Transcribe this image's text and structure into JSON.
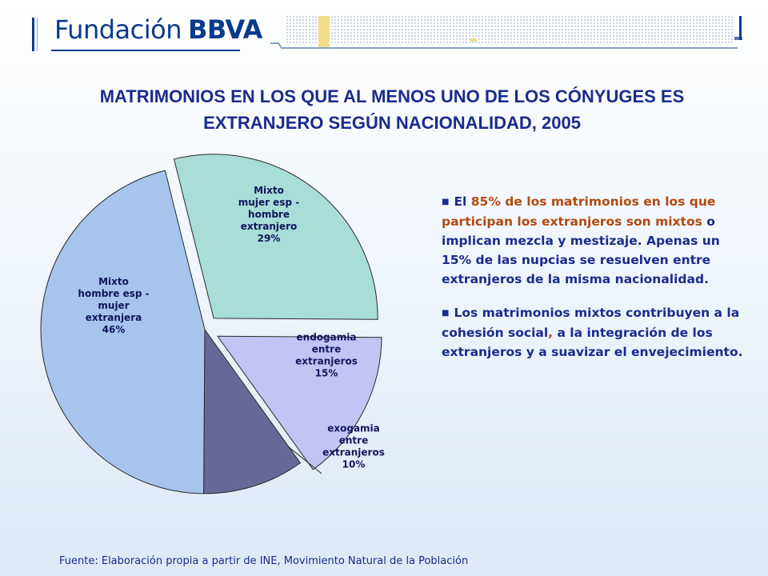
{
  "header": {
    "logo_text": "Fundación",
    "logo_brand": "BBVA"
  },
  "chart_data": {
    "type": "pie",
    "title_lines": [
      "MATRIMONIOS EN LOS QUE AL MENOS UNO DE LOS CÓNYUGES ES",
      "EXTRANJERO SEGÚN NACIONALIDAD, 2005"
    ],
    "slices": [
      {
        "label_lines": [
          "Mixto",
          "mujer esp -",
          "hombre",
          "extranjero"
        ],
        "value": 29,
        "value_label": "29%",
        "color": "#a8ddd8",
        "exploded": true
      },
      {
        "label_lines": [
          "endogamia",
          "entre",
          "extranjeros"
        ],
        "value": 15,
        "value_label": "15%",
        "color": "#c2c4f4",
        "exploded": true
      },
      {
        "label_lines": [
          "exogamia",
          "entre",
          "extranjeros"
        ],
        "value": 10,
        "value_label": "10%",
        "color": "#686898",
        "exploded": false
      },
      {
        "label_lines": [
          "Mixto",
          "hombre esp -",
          "mujer",
          "extranjera"
        ],
        "value": 46,
        "value_label": "46%",
        "color": "#a6c4ec",
        "exploded": false
      }
    ]
  },
  "text_panel": {
    "p1_prefix": "El ",
    "p1_highlight": "85% de los matrimonios en los que participan los extranjeros son mixtos",
    "p1_rest": " o implican mezcla y mestizaje.  Apenas un 15% de las nupcias se resuelven entre extranjeros de la misma nacionalidad.",
    "p2_a": "Los matrimonios mixtos contribuyen a la cohesión social",
    "p2_comma": ",",
    "p2_b": " a la integración de los extranjeros y a suavizar el envejecimiento."
  },
  "source": "Fuente: Elaboración propia a partir de INE, Movimiento Natural de la Población"
}
